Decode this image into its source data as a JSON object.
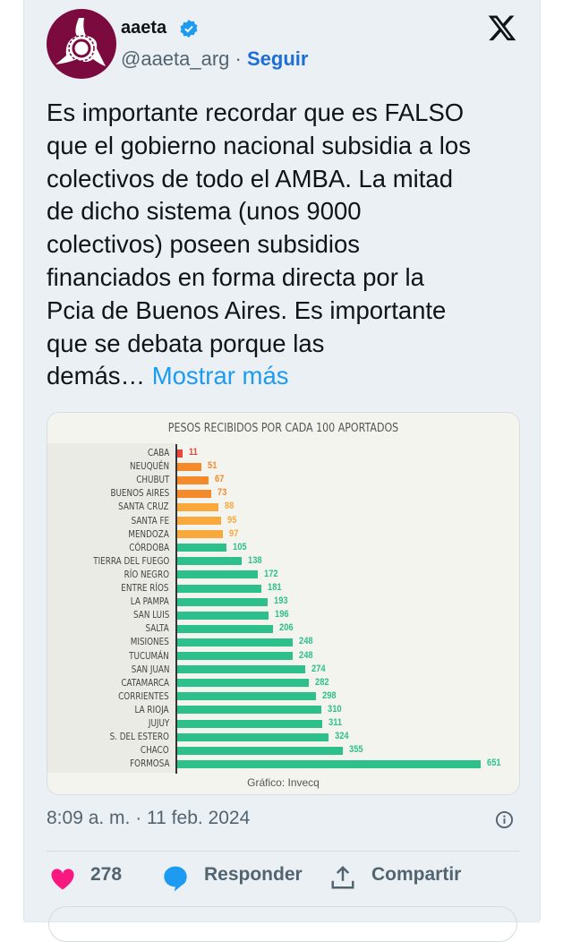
{
  "author": {
    "name": "aaeta",
    "handle": "@aaeta_arg",
    "follow_label": "Seguir",
    "verified": true
  },
  "tweet": {
    "lines": [
      "Es importante recordar que es FALSO",
      "que el gobierno nacional subsidia a los",
      "colectivos de todo el AMBA. La mitad",
      "de dicho sistema (unos 9000",
      "colectivos) poseen subsidios",
      "financiados en forma directa por la",
      "Pcia de Buenos Aires. Es importante",
      "que se debata porque las"
    ],
    "last_line": "demás… ",
    "show_more": "Mostrar más"
  },
  "timestamp": "8:09 a. m. · 11 feb. 2024",
  "actions": {
    "likes": "278",
    "reply": "Responder",
    "share": "Compartir"
  },
  "colors": {
    "like": "#f91880",
    "reply": "#1d9bf0",
    "link": "#1d9bf0",
    "red": "#e8453c",
    "orange": "#f58a2b",
    "light_orange": "#f9a93c",
    "green": "#2dbf8c"
  },
  "chart_data": {
    "type": "bar",
    "orientation": "horizontal",
    "title": "PESOS RECIBIDOS POR CADA 100 APORTADOS",
    "source": "Gráfico: Invecq",
    "categories": [
      "CABA",
      "NEUQUÉN",
      "CHUBUT",
      "BUENOS AIRES",
      "SANTA CRUZ",
      "SANTA FE",
      "MENDOZA",
      "CÓRDOBA",
      "TIERRA DEL FUEGO",
      "RÍO NEGRO",
      "ENTRE RÍOS",
      "LA PAMPA",
      "SAN LUIS",
      "SALTA",
      "MISIONES",
      "TUCUMÁN",
      "SAN JUAN",
      "CATAMARCA",
      "CORRIENTES",
      "LA RIOJA",
      "JUJUY",
      "S. DEL ESTERO",
      "CHACO",
      "FORMOSA"
    ],
    "values": [
      11,
      51,
      67,
      73,
      88,
      95,
      97,
      105,
      138,
      172,
      181,
      193,
      196,
      206,
      248,
      248,
      274,
      282,
      298,
      310,
      311,
      324,
      355,
      651
    ],
    "xlim": [
      0,
      651
    ]
  }
}
